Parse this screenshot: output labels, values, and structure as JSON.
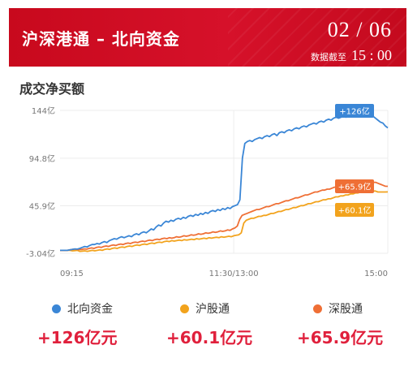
{
  "header": {
    "title": "沪深港通 – 北向资金",
    "date": "02 / 06",
    "cutoff_label": "数据截至",
    "cutoff_time": "15 : 00",
    "bg_color": "#d10f25"
  },
  "section_title": "成交净买额",
  "chart_data": {
    "type": "line",
    "y_ticks": [
      "144亿",
      "94.8亿",
      "45.9亿",
      "-3.04亿"
    ],
    "y_tick_values": [
      144,
      94.8,
      45.9,
      -3.04
    ],
    "x_ticks": [
      "09:15",
      "11:30/13:00",
      "15:00"
    ],
    "ylim": [
      -3.04,
      144
    ],
    "grid": true,
    "series": [
      {
        "name": "北向资金",
        "color": "#3a86d6",
        "end_label": "+126亿",
        "values": [
          0,
          0,
          0,
          0,
          0.5,
          1,
          1.5,
          1.2,
          2,
          3,
          4,
          3.5,
          5,
          6,
          6,
          7,
          6.5,
          8,
          9,
          8,
          10,
          11,
          12,
          11.5,
          13,
          14,
          13,
          14,
          15,
          14,
          16,
          17,
          16,
          18,
          19,
          18,
          20,
          22,
          21,
          24,
          26,
          25,
          28,
          30,
          29,
          31,
          30,
          32,
          33,
          32,
          34,
          33,
          35,
          36,
          35,
          37,
          36,
          38,
          37,
          39,
          38,
          40,
          41,
          40,
          42,
          41,
          43,
          42,
          44,
          43,
          45,
          46,
          47,
          52,
          95,
          110,
          112,
          113,
          112,
          114,
          115,
          116,
          115,
          117,
          118,
          117,
          119,
          120,
          118,
          121,
          122,
          121,
          123,
          124,
          123,
          125,
          126,
          125,
          127,
          128,
          127,
          129,
          130,
          131,
          130,
          132,
          133,
          132,
          134,
          135,
          134,
          136,
          137,
          136,
          137,
          138,
          137,
          139,
          140,
          139,
          140,
          141,
          142,
          141,
          141,
          140,
          139,
          138,
          136,
          134,
          132,
          131,
          128,
          126
        ]
      },
      {
        "name": "沪股通",
        "color": "#f2a31d",
        "end_label": "+60.1亿",
        "values": [
          0,
          0,
          0,
          0,
          0,
          -0.5,
          -0.3,
          0,
          -1,
          -0.8,
          -0.5,
          -1,
          -0.5,
          0,
          -0.5,
          0,
          0.5,
          0,
          1,
          1.5,
          1,
          2,
          2.5,
          2,
          3,
          3.5,
          3,
          4,
          4.5,
          4,
          5,
          5.5,
          5,
          6,
          6.5,
          6,
          7,
          7.5,
          7,
          8,
          8.5,
          8,
          9,
          9.5,
          9,
          10,
          9.5,
          10,
          10.5,
          10,
          11,
          10.5,
          11,
          11.5,
          11,
          12,
          11.5,
          12,
          12.5,
          12,
          13,
          12.5,
          13,
          13.5,
          13,
          14,
          13.5,
          14,
          14.5,
          14,
          15,
          15.5,
          16,
          18,
          28,
          31,
          32,
          33,
          33,
          34,
          35,
          35,
          36,
          36,
          37,
          38,
          38,
          39,
          40,
          40,
          41,
          42,
          42,
          43,
          44,
          44,
          45,
          46,
          46,
          47,
          48,
          48,
          49,
          50,
          50,
          51,
          52,
          52,
          53,
          53,
          54,
          55,
          55,
          56,
          56,
          57,
          57,
          58,
          58,
          59,
          59,
          60,
          60,
          60,
          61,
          61,
          61,
          61,
          60,
          60,
          60,
          60,
          60.1
        ]
      },
      {
        "name": "深股通",
        "color": "#ef6f35",
        "end_label": "+65.9亿",
        "values": [
          0,
          0,
          0,
          0,
          0.5,
          1,
          1.2,
          1,
          0.8,
          1,
          1.5,
          1.2,
          2,
          2.5,
          2,
          3,
          3.5,
          3,
          4,
          4.5,
          4,
          5,
          5.5,
          5,
          6,
          6.5,
          6,
          7,
          7.5,
          7,
          8,
          8.5,
          8,
          9,
          9.5,
          9,
          10,
          10.5,
          10,
          11,
          11.5,
          11,
          12,
          12.5,
          12,
          13,
          12.5,
          13,
          14,
          13.5,
          14,
          15,
          14.5,
          15,
          16,
          15.5,
          16,
          17,
          16.5,
          17,
          18,
          17.5,
          18,
          19,
          18.5,
          19,
          20,
          19.5,
          20,
          21,
          20.5,
          22,
          23,
          25,
          32,
          36,
          37,
          38,
          39,
          40,
          41,
          42,
          42,
          43,
          44,
          45,
          45,
          46,
          47,
          48,
          48,
          49,
          50,
          51,
          51,
          52,
          53,
          54,
          54,
          55,
          56,
          57,
          57,
          58,
          59,
          60,
          60,
          61,
          62,
          62,
          63,
          63,
          64,
          65,
          65,
          66,
          66,
          67,
          67,
          68,
          68,
          69,
          69,
          70,
          70,
          70,
          71,
          71,
          71,
          70,
          70,
          69,
          68,
          67,
          66,
          65.9
        ]
      }
    ]
  },
  "legend": {
    "items": [
      {
        "label": "北向资金",
        "color": "#3a86d6"
      },
      {
        "label": "沪股通",
        "color": "#f2a31d"
      },
      {
        "label": "深股通",
        "color": "#ef6f35"
      }
    ]
  },
  "totals": [
    {
      "value": "+126亿元"
    },
    {
      "value": "+60.1亿元"
    },
    {
      "value": "+65.9亿元"
    }
  ]
}
